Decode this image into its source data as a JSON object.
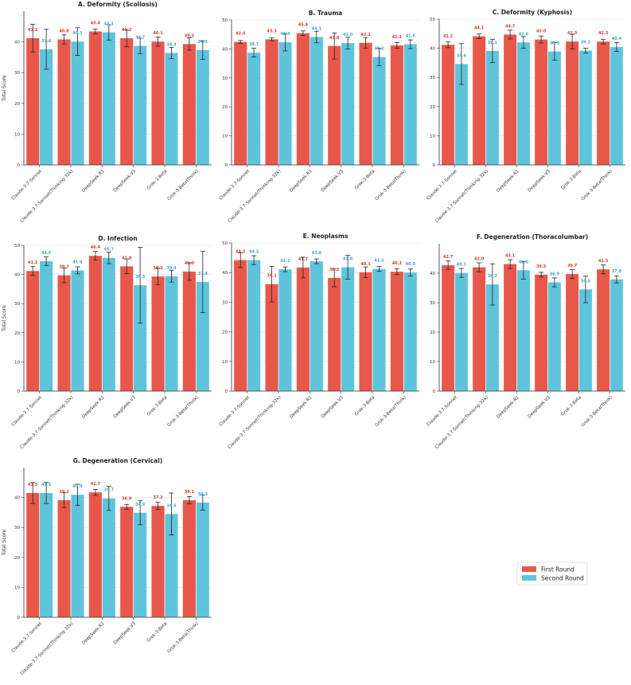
{
  "colors": {
    "first": "#e8584a",
    "second": "#5ec4dc",
    "grid": "#e6e6e6",
    "axis": "#333333",
    "first_label": "#d9382a",
    "second_label": "#3aa9c8"
  },
  "legend": {
    "first": "First Round",
    "second": "Second Round"
  },
  "chart_data": [
    {
      "type": "bar",
      "title": "A. Deformity (Scoliosis)",
      "ylabel": "Total Score",
      "ylim": [
        0,
        50
      ],
      "yticks": [
        0,
        10,
        20,
        30,
        40
      ],
      "categories": [
        "Claude-3.7-Sonnet",
        "Claude-3.7-Sonnet(Thinking-32k)",
        "DeepSeek-R1",
        "DeepSeek-V3",
        "Grok-3-Beta",
        "Grok-3-Beta(Think)"
      ],
      "series": [
        {
          "name": "First Round",
          "values": [
            41.2,
            40.8,
            43.4,
            41.2,
            40.1,
            39.3
          ],
          "errors": [
            4.5,
            1.5,
            0.8,
            2.8,
            1.5,
            2.0
          ]
        },
        {
          "name": "Second Round",
          "values": [
            37.6,
            40.1,
            43.1,
            38.7,
            36.4,
            37.3
          ],
          "errors": [
            6.5,
            4.5,
            2.5,
            2.5,
            1.8,
            3.0
          ]
        }
      ]
    },
    {
      "type": "bar",
      "title": "B. Trauma",
      "ylabel": "",
      "ylim": [
        0,
        50
      ],
      "yticks": [
        0,
        10,
        20,
        30,
        40,
        50
      ],
      "categories": [
        "Claude-3.7-Sonnet",
        "Claude-3.7-Sonnet(Thinking-32k)",
        "DeepSeek-R1",
        "DeepSeek-V3",
        "Grok-3-Beta",
        "Grok-3-Beta(Think)"
      ],
      "series": [
        {
          "name": "First Round",
          "values": [
            42.4,
            43.3,
            45.4,
            41.0,
            42.1,
            41.2
          ],
          "errors": [
            0.5,
            0.5,
            0.8,
            4.5,
            1.8,
            1.0
          ]
        },
        {
          "name": "Second Round",
          "values": [
            38.7,
            42.3,
            44.1,
            42.0,
            37.2,
            41.6
          ],
          "errors": [
            1.5,
            3.0,
            2.0,
            2.0,
            3.0,
            1.5
          ]
        }
      ]
    },
    {
      "type": "bar",
      "title": "C. Deformity (Kyphosis)",
      "ylabel": "",
      "ylim": [
        0,
        50
      ],
      "yticks": [
        0,
        10,
        20,
        30,
        40,
        50
      ],
      "categories": [
        "Claude-3.7-Sonnet",
        "Claude-3.7-Sonnet(Thinking-32k)",
        "DeepSeek-R1",
        "DeepSeek-V3",
        "Grok-3-Beta",
        "Grok-3-Beta(Think)"
      ],
      "series": [
        {
          "name": "First Round",
          "values": [
            41.2,
            44.1,
            44.7,
            43.0,
            42.3,
            42.3
          ],
          "errors": [
            1.0,
            0.8,
            1.5,
            1.2,
            2.5,
            0.8
          ]
        },
        {
          "name": "Second Round",
          "values": [
            34.6,
            39.1,
            42.0,
            38.9,
            39.2,
            40.4
          ],
          "errors": [
            7.0,
            4.0,
            2.0,
            3.0,
            0.8,
            1.5
          ]
        }
      ]
    },
    {
      "type": "bar",
      "title": "D. Infection",
      "ylabel": "Total Score",
      "ylim": [
        0,
        50
      ],
      "yticks": [
        0,
        10,
        20,
        30,
        40,
        50
      ],
      "categories": [
        "Claude-3.7-Sonnet",
        "Claude-3.7-Sonnet(Thinking-32k)",
        "DeepSeek-R1",
        "DeepSeek-V3",
        "Grok-3-Beta",
        "Grok-3-Beta(Think)"
      ],
      "series": [
        {
          "name": "First Round",
          "values": [
            41.2,
            39.7,
            46.4,
            42.8,
            39.3,
            41.0
          ],
          "errors": [
            1.5,
            2.5,
            1.5,
            2.5,
            2.8,
            3.0
          ]
        },
        {
          "name": "Second Round",
          "values": [
            44.6,
            41.4,
            45.7,
            36.3,
            39.4,
            37.4
          ],
          "errors": [
            1.5,
            1.2,
            2.0,
            13.0,
            2.0,
            10.5
          ]
        }
      ]
    },
    {
      "type": "bar",
      "title": "E. Neoplasms",
      "ylabel": "",
      "ylim": [
        0,
        50
      ],
      "yticks": [
        0,
        10,
        20,
        30,
        40,
        50
      ],
      "categories": [
        "Claude-3.7-Sonnet",
        "Claude-3.7-Sonnet(Thinking-32k)",
        "DeepSeek-R1",
        "DeepSeek-V3",
        "Grok-3-Beta",
        "Grok-3-Beta(Think)"
      ],
      "series": [
        {
          "name": "First Round",
          "values": [
            44.2,
            36.1,
            41.7,
            38.2,
            40.1,
            40.3
          ],
          "errors": [
            2.5,
            6.0,
            3.5,
            3.0,
            1.8,
            1.0
          ]
        },
        {
          "name": "Second Round",
          "values": [
            44.2,
            41.1,
            43.8,
            41.8,
            41.2,
            40.0
          ],
          "errors": [
            1.5,
            0.8,
            0.8,
            4.0,
            0.8,
            1.2
          ]
        }
      ]
    },
    {
      "type": "bar",
      "title": "F. Degeneration (Thoracolumbar)",
      "ylabel": "",
      "ylim": [
        0,
        50
      ],
      "yticks": [
        0,
        10,
        20,
        30,
        40
      ],
      "categories": [
        "Claude-3.7-Sonnet",
        "Claude-3.7-Sonnet(Thinking-32k)",
        "DeepSeek-R1",
        "DeepSeek-V3",
        "Grok-3-Beta",
        "Grok-3-Beta(Think)"
      ],
      "series": [
        {
          "name": "First Round",
          "values": [
            42.7,
            42.0,
            43.1,
            39.5,
            39.7,
            41.3
          ],
          "errors": [
            1.5,
            1.5,
            1.5,
            0.8,
            1.5,
            1.5
          ]
        },
        {
          "name": "Second Round",
          "values": [
            40.1,
            36.2,
            41.0,
            36.9,
            34.5,
            37.9
          ],
          "errors": [
            1.5,
            7.0,
            3.0,
            1.5,
            4.5,
            1.2
          ]
        }
      ]
    },
    {
      "type": "bar",
      "title": "G. Degeneration (Cervical)",
      "ylabel": "Total Score",
      "ylim": [
        0,
        50
      ],
      "yticks": [
        0,
        10,
        20,
        30,
        40
      ],
      "categories": [
        "Claude-3.7-Sonnet",
        "Claude-3.7-Sonnet(Thinking-32k)",
        "DeepSeek-R1",
        "DeepSeek-V3",
        "Grok-3-Beta",
        "Grok-3-Beta(Think)"
      ],
      "series": [
        {
          "name": "First Round",
          "values": [
            41.5,
            39.1,
            41.7,
            36.9,
            37.2,
            39.1
          ],
          "errors": [
            3.5,
            2.5,
            1.0,
            0.8,
            1.2,
            1.2
          ]
        },
        {
          "name": "Second Round",
          "values": [
            41.5,
            40.9,
            39.7,
            34.9,
            34.5,
            38.3
          ],
          "errors": [
            3.5,
            3.5,
            4.0,
            4.0,
            7.0,
            2.5
          ]
        }
      ]
    }
  ]
}
